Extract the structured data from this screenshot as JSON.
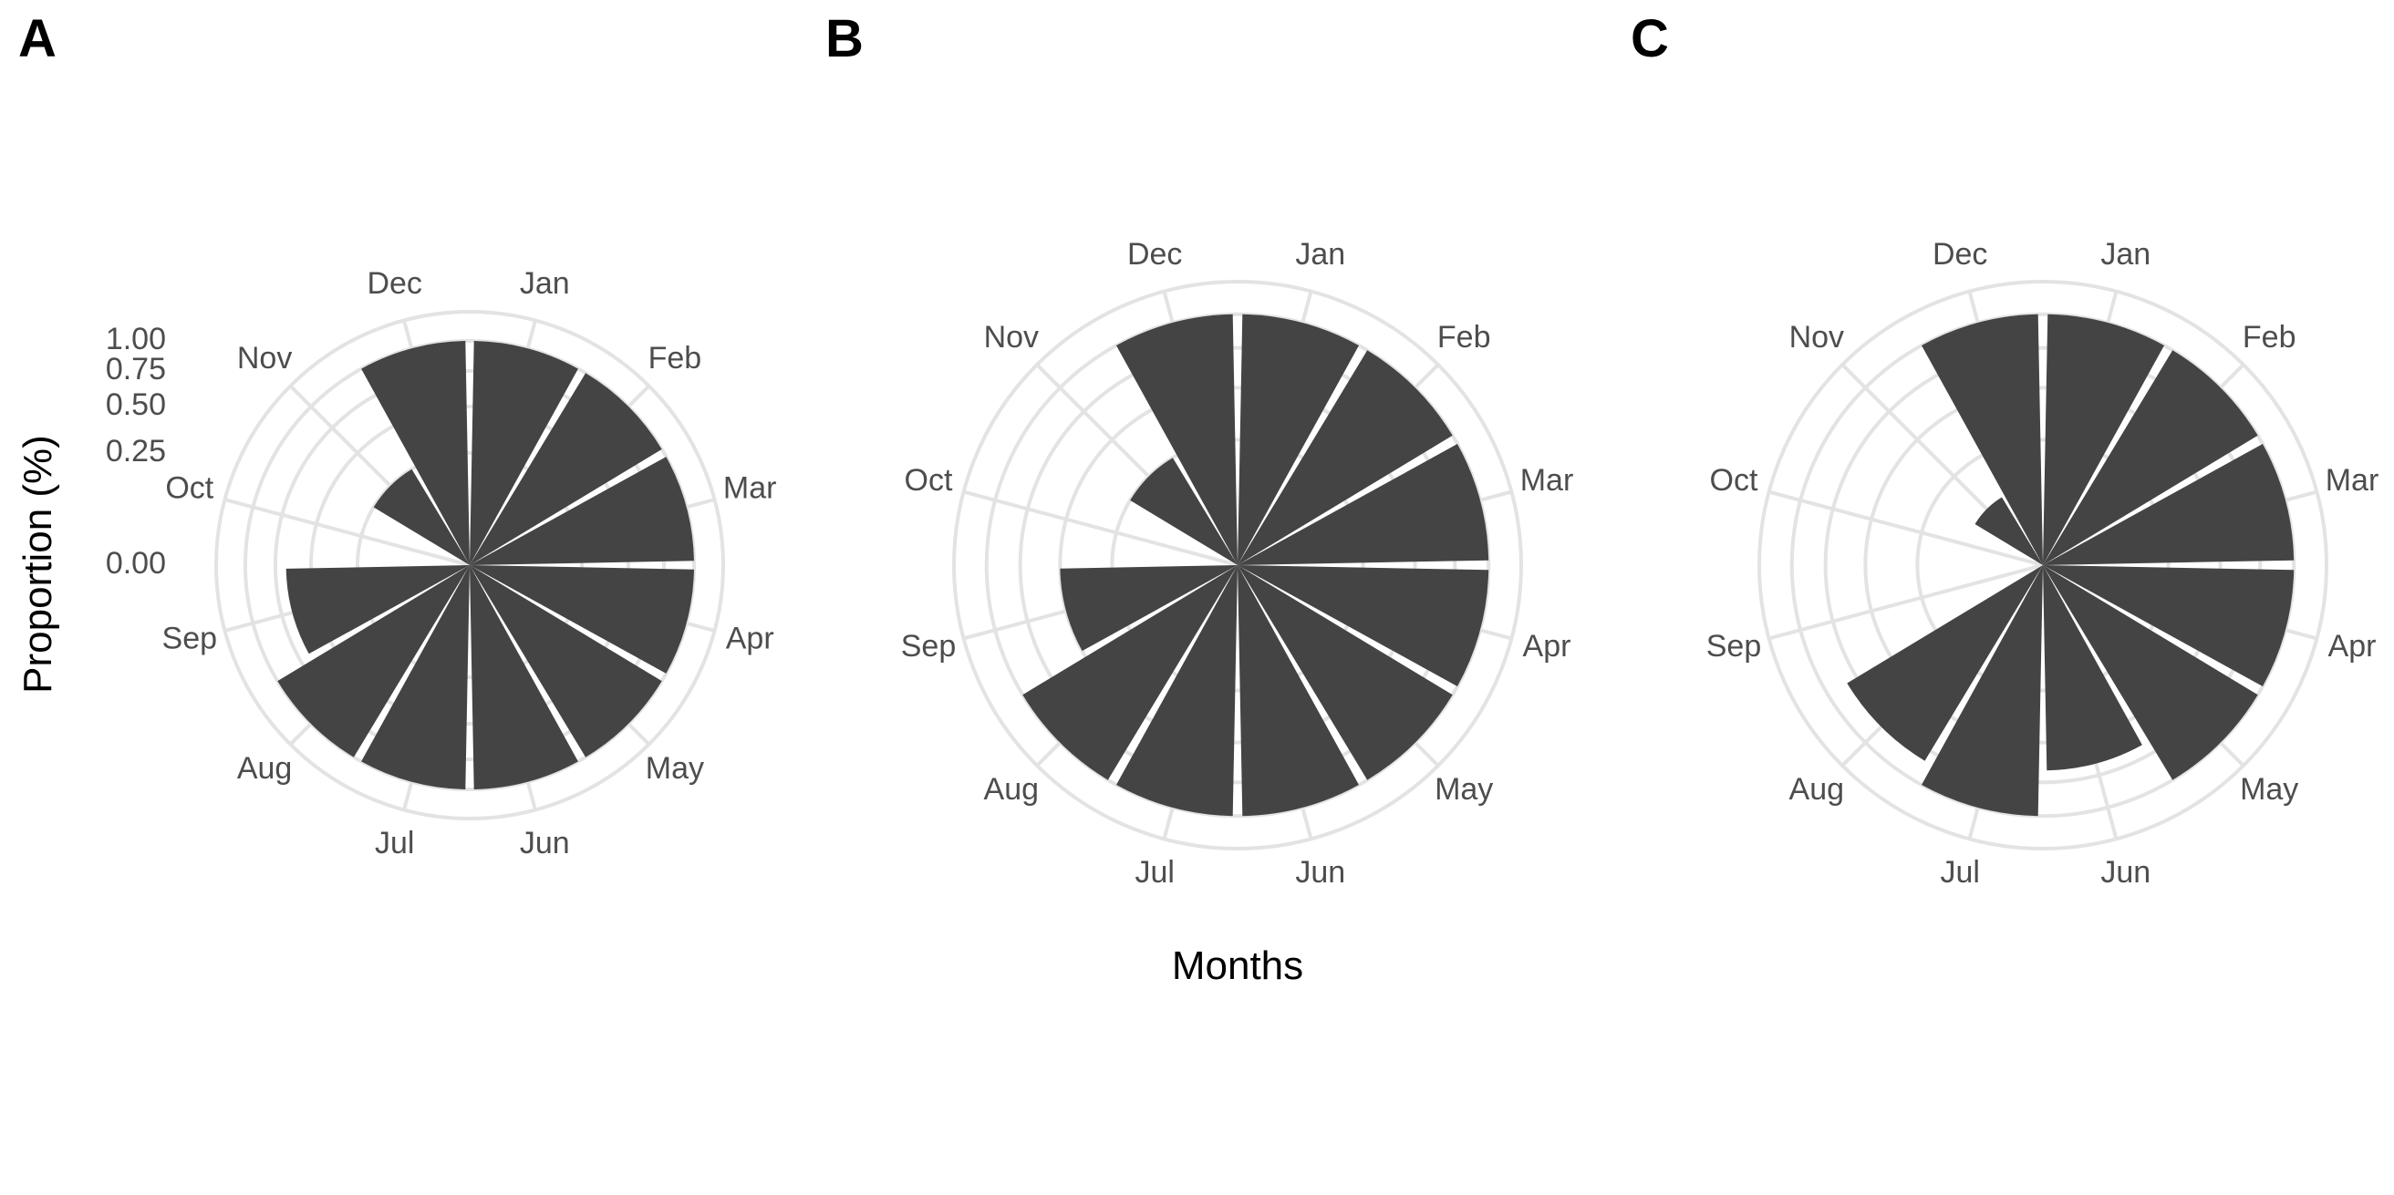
{
  "panel_labels": [
    "A",
    "B",
    "C"
  ],
  "y_axis_label": "Proportion (%)",
  "x_axis_label": "Months",
  "chart_data": [
    {
      "type": "bar",
      "polar": true,
      "panel": "A",
      "categories": [
        "Jan",
        "Feb",
        "Mar",
        "Apr",
        "May",
        "Jun",
        "Jul",
        "Aug",
        "Sep",
        "Oct",
        "Nov",
        "Dec"
      ],
      "values": [
        1.0,
        1.0,
        1.0,
        1.0,
        1.0,
        1.0,
        1.0,
        1.0,
        0.67,
        0.0,
        0.25,
        1.0
      ],
      "ylabel": "Proportion (%)",
      "y_ticks": [
        "0.00",
        "0.25",
        "0.50",
        "0.75",
        "1.00"
      ],
      "ylim": [
        0,
        1
      ],
      "grid": true,
      "bar_color": "#444444"
    },
    {
      "type": "bar",
      "polar": true,
      "panel": "B",
      "categories": [
        "Jan",
        "Feb",
        "Mar",
        "Apr",
        "May",
        "Jun",
        "Jul",
        "Aug",
        "Sep",
        "Oct",
        "Nov",
        "Dec"
      ],
      "values": [
        1.0,
        1.0,
        1.0,
        1.0,
        1.0,
        1.0,
        1.0,
        1.0,
        0.5,
        0.0,
        0.25,
        1.0
      ],
      "ylim": [
        0,
        1
      ],
      "grid": true,
      "bar_color": "#444444"
    },
    {
      "type": "bar",
      "polar": true,
      "panel": "C",
      "categories": [
        "Jan",
        "Feb",
        "Mar",
        "Apr",
        "May",
        "Jun",
        "Jul",
        "Aug",
        "Sep",
        "Oct",
        "Nov",
        "Dec"
      ],
      "values": [
        1.0,
        1.0,
        1.0,
        1.0,
        1.0,
        0.67,
        1.0,
        0.83,
        0.0,
        0.0,
        0.1,
        1.0
      ],
      "ylim": [
        0,
        1
      ],
      "grid": true,
      "bar_color": "#444444"
    }
  ]
}
